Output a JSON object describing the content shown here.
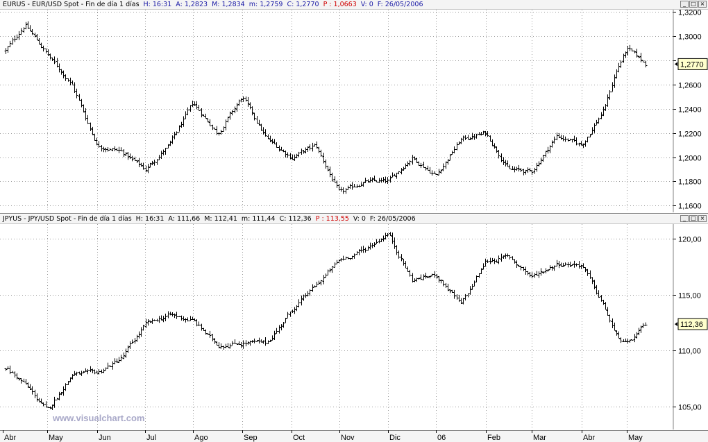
{
  "top_pane": {
    "symbol": "EURUS - EUR/USD Spot - Fin de día 1 días",
    "high_label": "H: 16:31",
    "a_label": "A: 1,2823",
    "m_label": "M: 1,2834",
    "min_label": "m: 1,2759",
    "c_label": "C: 1,2770",
    "p_label": "P : 1,0663",
    "v_label": "V: 0",
    "f_label": "F: 26/05/2006",
    "current_value": "1,2770"
  },
  "bottom_pane": {
    "symbol": "JPYUS - JPY/USD Spot - Fin de día 1 días",
    "high_label": "H: 16:31",
    "a_label": "A: 111,66",
    "m_label": "M: 112,41",
    "min_label": "m: 111,44",
    "c_label": "C: 112,36",
    "p_label": "P : 113,55",
    "v_label": "V: 0",
    "f_label": "F: 26/05/2006",
    "current_value": "112,36"
  },
  "window_controls": [
    "_",
    "□",
    "×"
  ],
  "watermark": "www.visualchart.com",
  "colors": {
    "bars": "#000000",
    "grid": "#9a9a9a",
    "value_box": "#ffffcc",
    "header_bg": "#f4f4f4",
    "watermark": "#a8a8c8"
  },
  "chart_data": [
    {
      "type": "ohlc",
      "title": "EURUS - EUR/USD Spot - Fin de día 1 días",
      "x_tick_labels": [
        "Abr",
        "May",
        "Jun",
        "Jul",
        "Ago",
        "Sep",
        "Oct",
        "Nov",
        "Dic",
        "06",
        "Feb",
        "Mar",
        "Abr",
        "May"
      ],
      "y_tick_labels": [
        "1,1600",
        "1,1800",
        "1,2000",
        "1,2200",
        "1,2400",
        "1,2600",
        "1,2800",
        "1,3000",
        "1,3200"
      ],
      "ylim": [
        1.155,
        1.322
      ],
      "grid": true,
      "close_anchors": {
        "x_month_index": [
          0,
          0.5,
          1.0,
          1.5,
          2.0,
          2.5,
          3.0,
          3.5,
          4.0,
          4.5,
          5.0,
          5.5,
          6.0,
          6.5,
          7.0,
          7.5,
          8.0,
          8.5,
          9.0,
          9.5,
          10.0,
          10.5,
          11.0,
          11.5,
          12.0,
          12.5,
          12.75,
          13.0,
          13.4
        ],
        "close": [
          1.285,
          1.31,
          1.285,
          1.26,
          1.21,
          1.205,
          1.19,
          1.21,
          1.245,
          1.22,
          1.25,
          1.215,
          1.2,
          1.21,
          1.17,
          1.18,
          1.18,
          1.2,
          1.185,
          1.215,
          1.22,
          1.19,
          1.188,
          1.218,
          1.21,
          1.24,
          1.27,
          1.29,
          1.277
        ]
      }
    },
    {
      "type": "ohlc",
      "title": "JPYUS - JPY/USD Spot - Fin de día 1 días",
      "x_tick_labels": [
        "Abr",
        "May",
        "Jun",
        "Jul",
        "Ago",
        "Sep",
        "Oct",
        "Nov",
        "Dic",
        "06",
        "Feb",
        "Mar",
        "Abr",
        "May"
      ],
      "y_tick_labels": [
        "105,00",
        "110,00",
        "115,00",
        "120,00"
      ],
      "ylim": [
        103,
        121.3
      ],
      "grid": true,
      "close_anchors": {
        "x_month_index": [
          0,
          0.5,
          1.0,
          1.5,
          2.0,
          2.5,
          3.0,
          3.5,
          4.0,
          4.5,
          5.0,
          5.5,
          6.0,
          6.5,
          7.0,
          7.5,
          8.0,
          8.5,
          9.0,
          9.5,
          10.0,
          10.5,
          11.0,
          11.5,
          12.0,
          12.5,
          12.75,
          13.0,
          13.4
        ],
        "close": [
          108.7,
          107.0,
          104.6,
          107.9,
          108.0,
          109.3,
          112.3,
          113.2,
          112.7,
          110.5,
          110.7,
          110.7,
          113.6,
          115.8,
          118.1,
          119.0,
          120.5,
          116.3,
          116.8,
          114.1,
          118.0,
          118.4,
          116.6,
          117.8,
          117.7,
          113.9,
          111.4,
          110.5,
          112.36
        ]
      }
    }
  ]
}
